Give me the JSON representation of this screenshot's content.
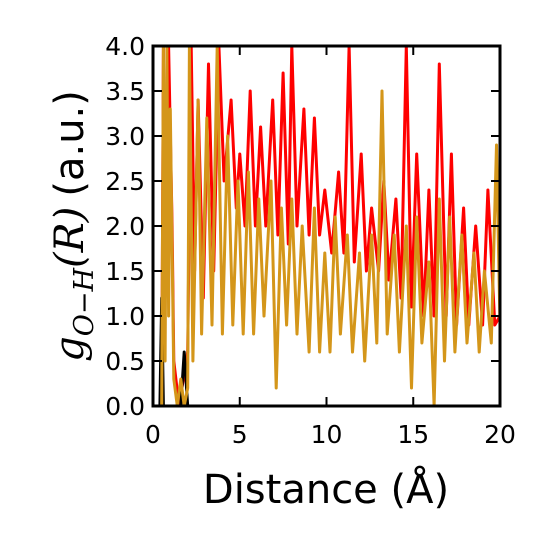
{
  "chart_data": {
    "type": "line",
    "title": "",
    "xlabel": "Distance (Å)",
    "ylabel": {
      "symbol": "g",
      "subscript": "O−H",
      "argument": "(R)",
      "units": "(a.u.)"
    },
    "xlim": [
      0,
      20
    ],
    "ylim": [
      0,
      4.0
    ],
    "x_ticks": [
      "0",
      "5",
      "10",
      "15",
      "20"
    ],
    "y_ticks": [
      "0.0",
      "0.5",
      "1.0",
      "1.5",
      "2.0",
      "2.5",
      "3.0",
      "3.5",
      "4.0"
    ],
    "grid": false,
    "series": [
      {
        "color": "#ff0000",
        "points": [
          [
            0.5,
            0.0
          ],
          [
            0.6,
            4.0
          ],
          [
            0.7,
            1.5
          ],
          [
            0.9,
            4.0
          ],
          [
            1.1,
            2.0
          ],
          [
            1.2,
            0.5
          ],
          [
            1.5,
            0.0
          ],
          [
            2.0,
            0.6
          ],
          [
            2.2,
            4.0
          ],
          [
            2.4,
            1.5
          ],
          [
            2.6,
            3.4
          ],
          [
            2.9,
            1.2
          ],
          [
            3.2,
            3.8
          ],
          [
            3.5,
            1.5
          ],
          [
            3.8,
            4.0
          ],
          [
            4.1,
            2.5
          ],
          [
            4.5,
            3.4
          ],
          [
            4.8,
            2.2
          ],
          [
            5.0,
            2.8
          ],
          [
            5.3,
            2.0
          ],
          [
            5.6,
            3.5
          ],
          [
            5.9,
            2.0
          ],
          [
            6.2,
            3.1
          ],
          [
            6.5,
            2.0
          ],
          [
            6.9,
            3.4
          ],
          [
            7.2,
            1.9
          ],
          [
            7.5,
            3.7
          ],
          [
            7.8,
            1.8
          ],
          [
            8.0,
            4.0
          ],
          [
            8.3,
            2.0
          ],
          [
            8.7,
            3.3
          ],
          [
            9.0,
            1.9
          ],
          [
            9.3,
            3.2
          ],
          [
            9.6,
            1.9
          ],
          [
            9.9,
            2.4
          ],
          [
            10.3,
            1.7
          ],
          [
            10.7,
            2.6
          ],
          [
            11.0,
            1.7
          ],
          [
            11.3,
            4.0
          ],
          [
            11.6,
            1.6
          ],
          [
            12.0,
            2.8
          ],
          [
            12.3,
            1.5
          ],
          [
            12.6,
            2.2
          ],
          [
            13.0,
            1.5
          ],
          [
            13.3,
            2.5
          ],
          [
            13.6,
            1.4
          ],
          [
            14.0,
            2.3
          ],
          [
            14.3,
            1.2
          ],
          [
            14.6,
            4.0
          ],
          [
            14.9,
            1.1
          ],
          [
            15.2,
            2.8
          ],
          [
            15.6,
            1.0
          ],
          [
            15.9,
            2.4
          ],
          [
            16.2,
            1.0
          ],
          [
            16.5,
            3.8
          ],
          [
            16.9,
            1.0
          ],
          [
            17.2,
            2.8
          ],
          [
            17.5,
            0.9
          ],
          [
            17.9,
            2.2
          ],
          [
            18.2,
            0.9
          ],
          [
            18.6,
            2.0
          ],
          [
            19.0,
            0.9
          ],
          [
            19.3,
            2.4
          ],
          [
            19.7,
            0.9
          ],
          [
            20.0,
            1.0
          ]
        ]
      },
      {
        "color": "#000000",
        "points": [
          [
            0.4,
            0.0
          ],
          [
            0.5,
            1.2
          ],
          [
            0.6,
            0.0
          ],
          [
            1.6,
            0.0
          ],
          [
            1.8,
            0.6
          ],
          [
            2.0,
            0.0
          ]
        ]
      },
      {
        "color": "#d4961a",
        "points": [
          [
            0.5,
            0.0
          ],
          [
            0.6,
            4.0
          ],
          [
            0.7,
            0.5
          ],
          [
            0.8,
            4.0
          ],
          [
            0.9,
            1.0
          ],
          [
            1.0,
            3.3
          ],
          [
            1.2,
            0.3
          ],
          [
            1.4,
            0.0
          ],
          [
            1.6,
            0.3
          ],
          [
            1.8,
            0.0
          ],
          [
            2.0,
            0.2
          ],
          [
            2.1,
            4.0
          ],
          [
            2.3,
            0.5
          ],
          [
            2.6,
            3.4
          ],
          [
            2.8,
            0.8
          ],
          [
            3.1,
            3.2
          ],
          [
            3.4,
            0.9
          ],
          [
            3.7,
            4.0
          ],
          [
            4.0,
            0.8
          ],
          [
            4.3,
            3.0
          ],
          [
            4.6,
            0.9
          ],
          [
            4.9,
            2.5
          ],
          [
            5.2,
            0.8
          ],
          [
            5.5,
            2.6
          ],
          [
            5.8,
            0.8
          ],
          [
            6.1,
            2.3
          ],
          [
            6.4,
            1.0
          ],
          [
            6.8,
            2.5
          ],
          [
            7.1,
            0.2
          ],
          [
            7.4,
            2.2
          ],
          [
            7.7,
            0.9
          ],
          [
            8.0,
            2.3
          ],
          [
            8.3,
            0.8
          ],
          [
            8.6,
            2.0
          ],
          [
            9.0,
            0.6
          ],
          [
            9.3,
            2.2
          ],
          [
            9.6,
            0.6
          ],
          [
            9.9,
            1.7
          ],
          [
            10.2,
            0.6
          ],
          [
            10.5,
            2.1
          ],
          [
            10.8,
            0.8
          ],
          [
            11.2,
            1.9
          ],
          [
            11.5,
            0.6
          ],
          [
            11.9,
            1.7
          ],
          [
            12.2,
            0.5
          ],
          [
            12.6,
            1.9
          ],
          [
            12.9,
            0.7
          ],
          [
            13.2,
            3.5
          ],
          [
            13.5,
            0.8
          ],
          [
            13.9,
            1.9
          ],
          [
            14.2,
            0.6
          ],
          [
            14.6,
            2.0
          ],
          [
            14.9,
            0.2
          ],
          [
            15.2,
            2.1
          ],
          [
            15.5,
            0.7
          ],
          [
            15.9,
            1.6
          ],
          [
            16.2,
            0.0
          ],
          [
            16.5,
            2.3
          ],
          [
            16.8,
            0.5
          ],
          [
            17.1,
            2.1
          ],
          [
            17.4,
            0.6
          ],
          [
            17.8,
            1.9
          ],
          [
            18.1,
            0.7
          ],
          [
            18.5,
            1.7
          ],
          [
            18.8,
            0.6
          ],
          [
            19.1,
            1.5
          ],
          [
            19.5,
            0.7
          ],
          [
            19.8,
            2.9
          ],
          [
            20.0,
            0.9
          ]
        ]
      }
    ]
  }
}
